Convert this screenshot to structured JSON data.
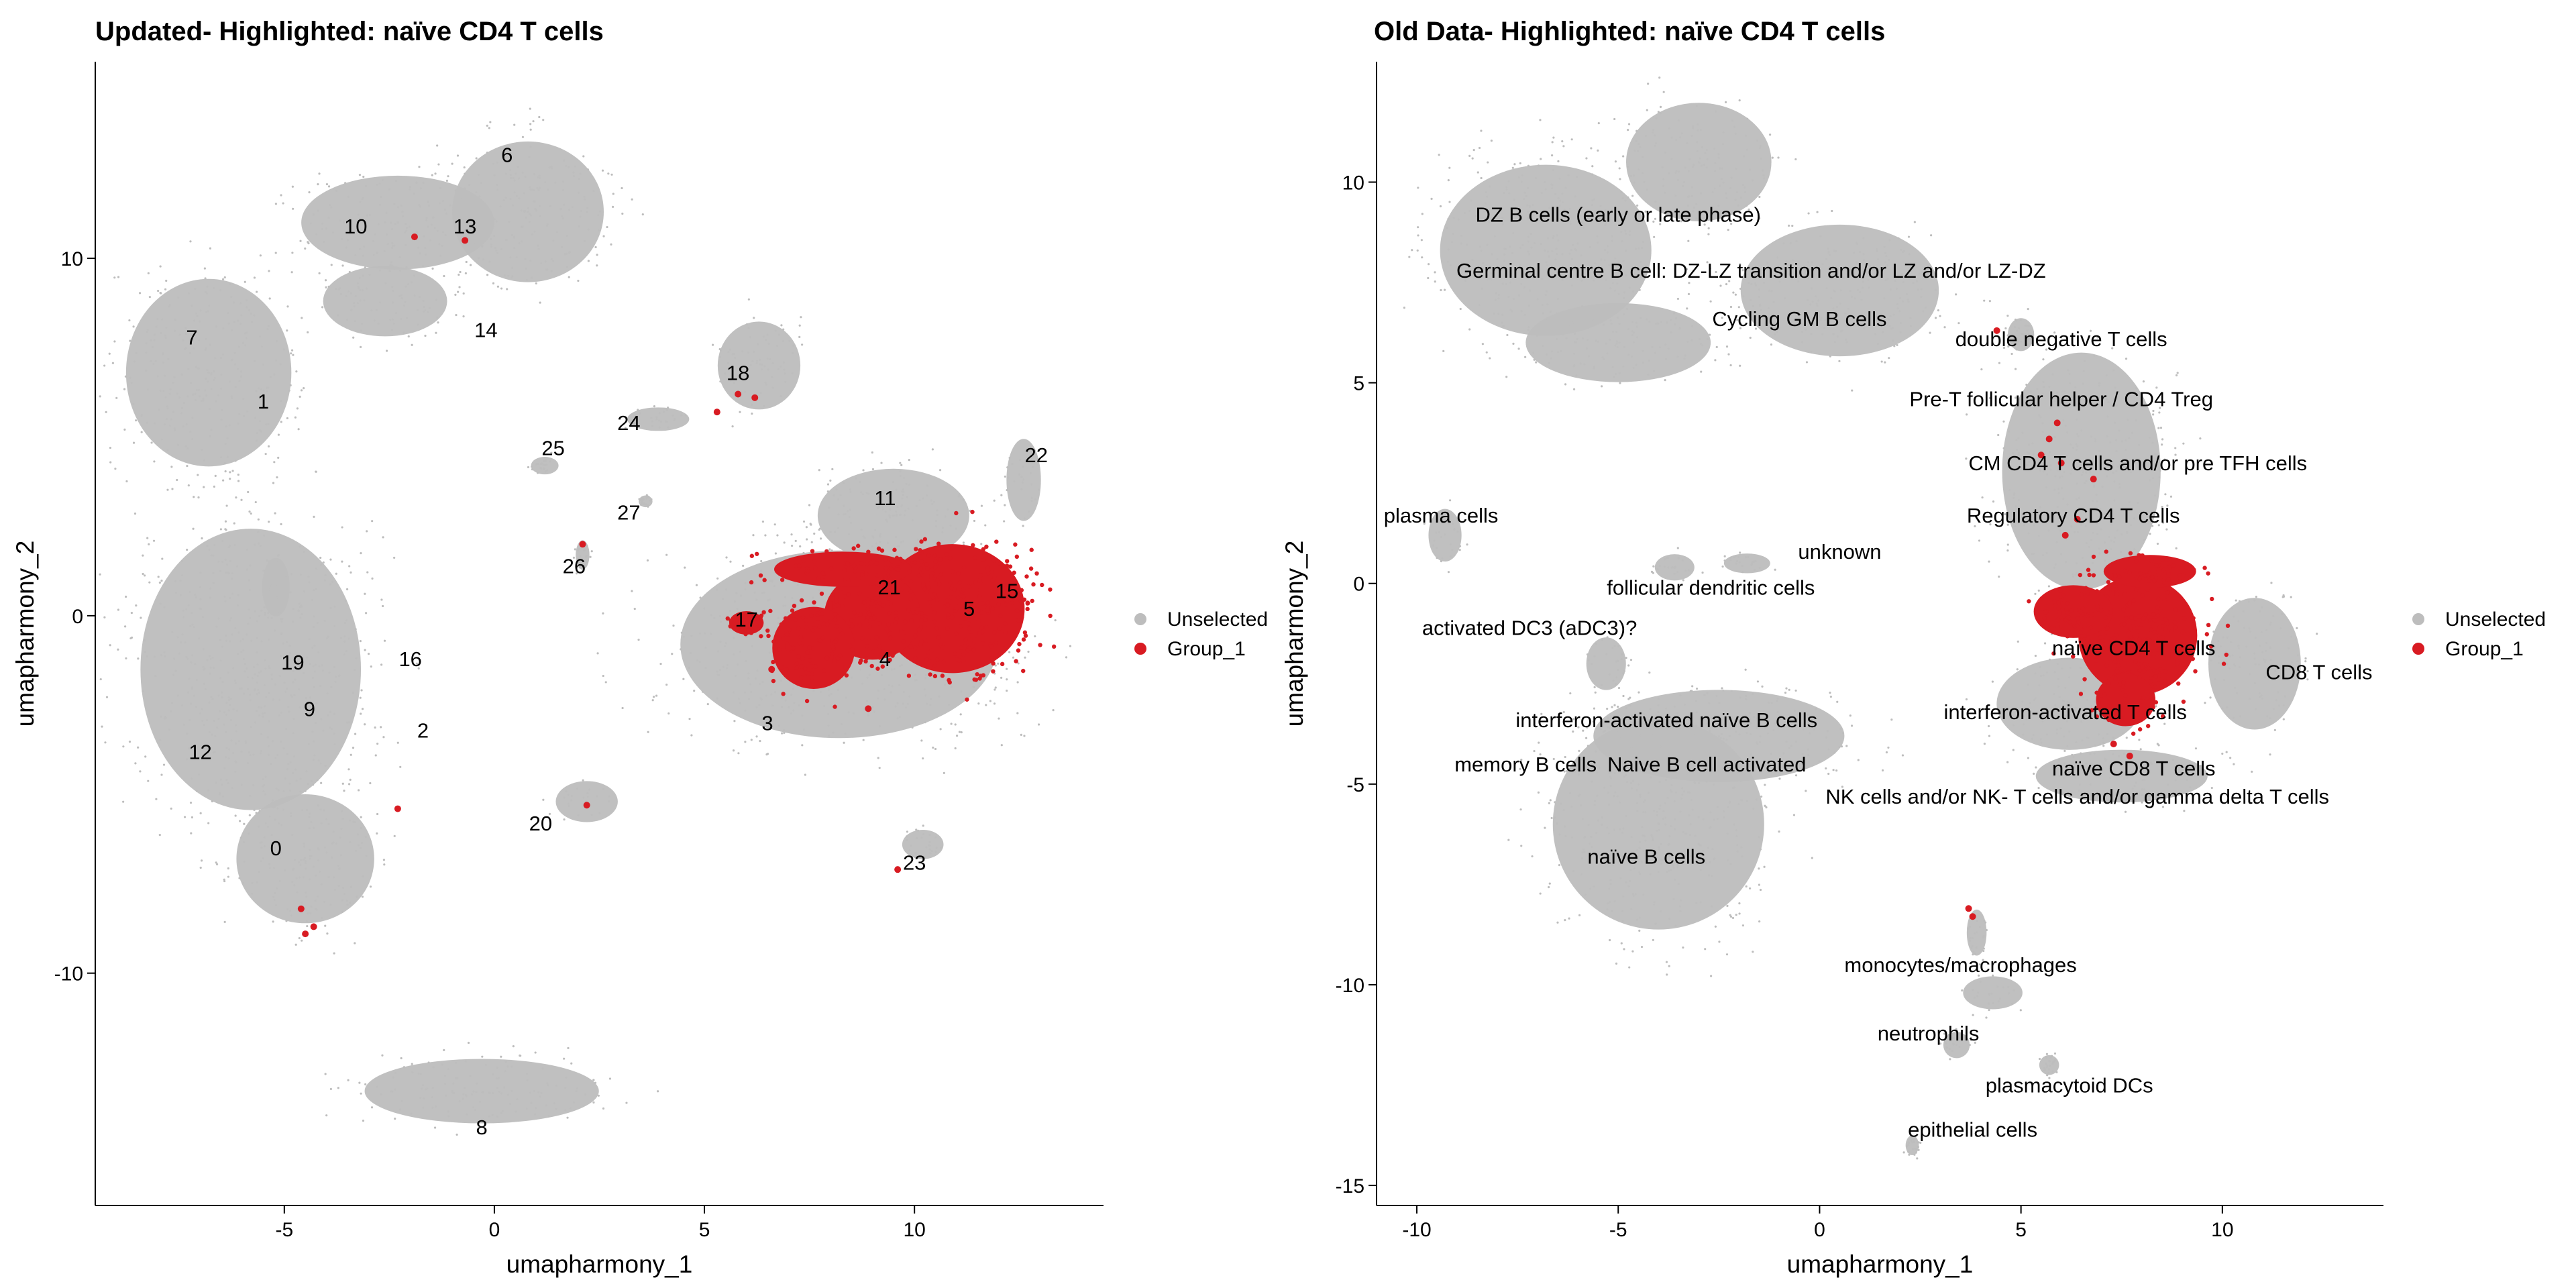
{
  "colors": {
    "unselected": "#BDBDBD",
    "group": "#D81B22",
    "axis": "#000000",
    "background": "#FFFFFF"
  },
  "chart_data": [
    {
      "type": "scatter",
      "title": "Updated- Highlighted: naïve CD4 T cells",
      "xlabel": "umapharmony_1",
      "ylabel": "umapharmony_2",
      "xlim": [
        -9.5,
        14.5
      ],
      "ylim": [
        -16.5,
        15.5
      ],
      "xticks": [
        -5,
        0,
        5,
        10
      ],
      "yticks": [
        -10,
        0,
        10
      ],
      "grid": false,
      "legend_position": "right",
      "legend": [
        {
          "label": "Unselected",
          "color": "#BDBDBD"
        },
        {
          "label": "Group_1",
          "color": "#D81B22"
        }
      ],
      "series": [
        {
          "name": "Unselected",
          "color": "#BDBDBD",
          "clusters": [
            {
              "cx": -5.8,
              "cy": -1.5,
              "rx": 3.2,
              "ry": 4.8
            },
            {
              "cx": -4.5,
              "cy": -6.8,
              "rx": 2.0,
              "ry": 2.2
            },
            {
              "cx": -6.8,
              "cy": 6.8,
              "rx": 2.4,
              "ry": 3.2
            },
            {
              "cx": -2.3,
              "cy": 11.0,
              "rx": 2.8,
              "ry": 1.6
            },
            {
              "cx": 0.8,
              "cy": 11.3,
              "rx": 2.2,
              "ry": 2.4
            },
            {
              "cx": -2.6,
              "cy": 8.8,
              "rx": 1.8,
              "ry": 1.2
            },
            {
              "cx": 8.2,
              "cy": -0.8,
              "rx": 4.6,
              "ry": 3.2
            },
            {
              "cx": 9.5,
              "cy": 2.8,
              "rx": 2.2,
              "ry": 1.6
            },
            {
              "cx": 12.6,
              "cy": 3.8,
              "rx": 0.5,
              "ry": 1.4
            },
            {
              "cx": 6.3,
              "cy": 7.0,
              "rx": 1.2,
              "ry": 1.5
            },
            {
              "cx": 3.9,
              "cy": 5.5,
              "rx": 0.9,
              "ry": 0.4
            },
            {
              "cx": 3.6,
              "cy": 3.2,
              "rx": 0.2,
              "ry": 0.2
            },
            {
              "cx": 1.2,
              "cy": 4.2,
              "rx": 0.4,
              "ry": 0.3
            },
            {
              "cx": 2.1,
              "cy": 1.7,
              "rx": 0.2,
              "ry": 0.5
            },
            {
              "cx": 2.2,
              "cy": -5.2,
              "rx": 0.9,
              "ry": 0.7
            },
            {
              "cx": 10.2,
              "cy": -6.4,
              "rx": 0.6,
              "ry": 0.5
            },
            {
              "cx": -0.3,
              "cy": -13.3,
              "rx": 3.4,
              "ry": 1.1
            },
            {
              "cx": -5.2,
              "cy": 0.8,
              "rx": 0.4,
              "ry": 1.0
            }
          ]
        },
        {
          "name": "Group_1",
          "color": "#D81B22",
          "clusters": [
            {
              "cx": 10.9,
              "cy": 0.2,
              "rx": 2.1,
              "ry": 2.2
            },
            {
              "cx": 9.0,
              "cy": 0.0,
              "rx": 1.4,
              "ry": 1.5
            },
            {
              "cx": 8.3,
              "cy": 1.3,
              "rx": 2.0,
              "ry": 0.6
            },
            {
              "cx": 6.0,
              "cy": -0.2,
              "rx": 0.5,
              "ry": 0.4
            },
            {
              "cx": 7.6,
              "cy": -0.9,
              "rx": 1.2,
              "ry": 1.4
            }
          ],
          "points": [
            [
              -1.9,
              10.6
            ],
            [
              -0.7,
              10.5
            ],
            [
              -2.3,
              -5.4
            ],
            [
              -4.6,
              -8.2
            ],
            [
              -4.5,
              -8.9
            ],
            [
              -4.3,
              -8.7
            ],
            [
              2.2,
              -5.3
            ],
            [
              9.6,
              -7.1
            ],
            [
              6.2,
              6.1
            ],
            [
              5.8,
              6.2
            ],
            [
              5.3,
              5.7
            ],
            [
              2.1,
              2.0
            ],
            [
              8.9,
              -2.6
            ],
            [
              6.6,
              -1.5
            ],
            [
              7.0,
              -0.9
            ]
          ]
        }
      ],
      "annotations": [
        {
          "text": "0",
          "x": -5.2,
          "y": -6.5
        },
        {
          "text": "1",
          "x": -5.5,
          "y": 6.0
        },
        {
          "text": "2",
          "x": -1.7,
          "y": -3.2
        },
        {
          "text": "3",
          "x": 6.5,
          "y": -3.0
        },
        {
          "text": "4",
          "x": 9.3,
          "y": -1.2
        },
        {
          "text": "5",
          "x": 11.3,
          "y": 0.2
        },
        {
          "text": "6",
          "x": 0.3,
          "y": 12.9
        },
        {
          "text": "7",
          "x": -7.2,
          "y": 7.8
        },
        {
          "text": "8",
          "x": -0.3,
          "y": -14.3
        },
        {
          "text": "9",
          "x": -4.4,
          "y": -2.6
        },
        {
          "text": "10",
          "x": -3.3,
          "y": 10.9
        },
        {
          "text": "11",
          "x": 9.3,
          "y": 3.3
        },
        {
          "text": "12",
          "x": -7.0,
          "y": -3.8
        },
        {
          "text": "13",
          "x": -0.7,
          "y": 10.9
        },
        {
          "text": "14",
          "x": -0.2,
          "y": 8.0
        },
        {
          "text": "15",
          "x": 12.2,
          "y": 0.7
        },
        {
          "text": "16",
          "x": -2.0,
          "y": -1.2
        },
        {
          "text": "17",
          "x": 6.0,
          "y": -0.1
        },
        {
          "text": "18",
          "x": 5.8,
          "y": 6.8
        },
        {
          "text": "19",
          "x": -4.8,
          "y": -1.3
        },
        {
          "text": "20",
          "x": 1.1,
          "y": -5.8
        },
        {
          "text": "21",
          "x": 9.4,
          "y": 0.8
        },
        {
          "text": "22",
          "x": 12.9,
          "y": 4.5
        },
        {
          "text": "23",
          "x": 10.0,
          "y": -6.9
        },
        {
          "text": "24",
          "x": 3.2,
          "y": 5.4
        },
        {
          "text": "25",
          "x": 1.4,
          "y": 4.7
        },
        {
          "text": "26",
          "x": 1.9,
          "y": 1.4
        },
        {
          "text": "27",
          "x": 3.2,
          "y": 2.9
        }
      ]
    },
    {
      "type": "scatter",
      "title": "Old Data- Highlighted: naïve CD4 T cells",
      "xlabel": "umapharmony_1",
      "ylabel": "umapharmony_2",
      "xlim": [
        -11,
        14
      ],
      "ylim": [
        -15.5,
        13
      ],
      "xticks": [
        -10,
        -5,
        0,
        5,
        10
      ],
      "yticks": [
        -15,
        -10,
        -5,
        0,
        5,
        10
      ],
      "grid": false,
      "legend_position": "right",
      "legend": [
        {
          "label": "Unselected",
          "color": "#BDBDBD"
        },
        {
          "label": "Group_1",
          "color": "#D81B22"
        }
      ],
      "series": [
        {
          "name": "Unselected",
          "color": "#BDBDBD",
          "clusters": [
            {
              "cx": -6.8,
              "cy": 8.3,
              "rx": 3.2,
              "ry": 2.6
            },
            {
              "cx": -3.0,
              "cy": 10.5,
              "rx": 2.2,
              "ry": 1.8
            },
            {
              "cx": 0.5,
              "cy": 7.3,
              "rx": 3.0,
              "ry": 2.0
            },
            {
              "cx": -5.0,
              "cy": 6.0,
              "rx": 2.8,
              "ry": 1.2
            },
            {
              "cx": 6.5,
              "cy": 2.8,
              "rx": 2.4,
              "ry": 3.6
            },
            {
              "cx": 6.2,
              "cy": -3.0,
              "rx": 2.2,
              "ry": 1.4
            },
            {
              "cx": 10.8,
              "cy": -2.0,
              "rx": 1.4,
              "ry": 2.0
            },
            {
              "cx": 7.5,
              "cy": -4.8,
              "rx": 2.6,
              "ry": 0.8
            },
            {
              "cx": -4.0,
              "cy": -6.0,
              "rx": 3.2,
              "ry": 3.2
            },
            {
              "cx": -2.5,
              "cy": -3.8,
              "rx": 3.8,
              "ry": 1.4
            },
            {
              "cx": -5.3,
              "cy": -2.0,
              "rx": 0.6,
              "ry": 0.8
            },
            {
              "cx": 5.0,
              "cy": 6.2,
              "rx": 0.4,
              "ry": 0.5
            },
            {
              "cx": -9.3,
              "cy": 1.2,
              "rx": 0.5,
              "ry": 0.8
            },
            {
              "cx": -3.6,
              "cy": 0.4,
              "rx": 0.6,
              "ry": 0.4
            },
            {
              "cx": -1.8,
              "cy": 0.5,
              "rx": 0.7,
              "ry": 0.3
            },
            {
              "cx": 3.9,
              "cy": -8.7,
              "rx": 0.3,
              "ry": 0.7
            },
            {
              "cx": 4.3,
              "cy": -10.2,
              "rx": 0.9,
              "ry": 0.5
            },
            {
              "cx": 3.4,
              "cy": -11.5,
              "rx": 0.4,
              "ry": 0.4
            },
            {
              "cx": 5.7,
              "cy": -12.0,
              "rx": 0.3,
              "ry": 0.3
            },
            {
              "cx": 2.3,
              "cy": -14.0,
              "rx": 0.2,
              "ry": 0.3
            }
          ]
        },
        {
          "name": "Group_1",
          "color": "#D81B22",
          "clusters": [
            {
              "cx": 7.9,
              "cy": -1.3,
              "rx": 1.8,
              "ry": 1.8
            },
            {
              "cx": 6.3,
              "cy": -0.7,
              "rx": 1.2,
              "ry": 0.8
            },
            {
              "cx": 8.2,
              "cy": 0.3,
              "rx": 1.4,
              "ry": 0.5
            },
            {
              "cx": 7.6,
              "cy": -2.9,
              "rx": 0.9,
              "ry": 0.8
            }
          ],
          "points": [
            [
              4.4,
              6.3
            ],
            [
              5.9,
              4.0
            ],
            [
              5.7,
              3.6
            ],
            [
              5.5,
              3.2
            ],
            [
              6.0,
              3.0
            ],
            [
              6.8,
              2.6
            ],
            [
              6.4,
              1.6
            ],
            [
              6.1,
              1.2
            ],
            [
              3.7,
              -8.1
            ],
            [
              3.8,
              -8.3
            ],
            [
              7.3,
              -4.0
            ],
            [
              7.7,
              -4.3
            ]
          ]
        }
      ],
      "annotations": [
        {
          "text": "DZ B cells (early or late phase)",
          "x": -5.0,
          "y": 9.2
        },
        {
          "text": "Germinal centre B cell: DZ-LZ transition and/or LZ and/or LZ-DZ",
          "x": -1.7,
          "y": 7.8
        },
        {
          "text": "Cycling GM B cells",
          "x": -0.5,
          "y": 6.6
        },
        {
          "text": "double negative T cells",
          "x": 6.0,
          "y": 6.1
        },
        {
          "text": "Pre-T follicular helper / CD4 Treg",
          "x": 6.0,
          "y": 4.6
        },
        {
          "text": "CM CD4 T cells  and/or pre TFH cells",
          "x": 7.9,
          "y": 3.0
        },
        {
          "text": "Regulatory CD4 T cells",
          "x": 6.3,
          "y": 1.7
        },
        {
          "text": "plasma cells",
          "x": -9.4,
          "y": 1.7
        },
        {
          "text": "unknown",
          "x": 0.5,
          "y": 0.8
        },
        {
          "text": "follicular dendritic cells",
          "x": -2.7,
          "y": -0.1
        },
        {
          "text": "activated DC3 (aDC3)?",
          "x": -7.2,
          "y": -1.1
        },
        {
          "text": "naïve CD4 T cells",
          "x": 7.8,
          "y": -1.6
        },
        {
          "text": "CD8 T cells",
          "x": 12.4,
          "y": -2.2
        },
        {
          "text": "interferon-activated naïve B cells",
          "x": -3.8,
          "y": -3.4
        },
        {
          "text": "interferon-activated T cells",
          "x": 6.1,
          "y": -3.2
        },
        {
          "text": "memory B cells",
          "x": -7.3,
          "y": -4.5
        },
        {
          "text": "Naive B cell activated",
          "x": -2.8,
          "y": -4.5
        },
        {
          "text": "naïve CD8 T cells",
          "x": 7.8,
          "y": -4.6
        },
        {
          "text": "NK cells and/or NK- T cells and/or gamma delta T cells",
          "x": 6.4,
          "y": -5.3
        },
        {
          "text": "naïve B cells",
          "x": -4.3,
          "y": -6.8
        },
        {
          "text": "monocytes/macrophages",
          "x": 3.5,
          "y": -9.5
        },
        {
          "text": "neutrophils",
          "x": 2.7,
          "y": -11.2
        },
        {
          "text": "plasmacytoid DCs",
          "x": 6.2,
          "y": -12.5
        },
        {
          "text": "epithelial cells",
          "x": 3.8,
          "y": -13.6
        }
      ]
    }
  ]
}
